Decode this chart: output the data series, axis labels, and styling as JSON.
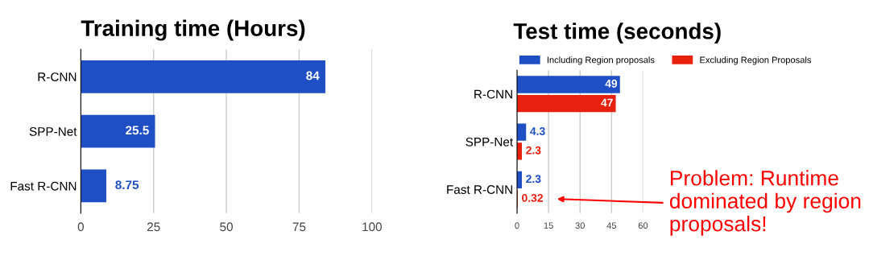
{
  "chart_data": [
    {
      "type": "bar",
      "orientation": "horizontal",
      "title": "Training time (Hours)",
      "categories": [
        "R-CNN",
        "SPP-Net",
        "Fast R-CNN"
      ],
      "values": [
        84,
        25.5,
        8.75
      ],
      "color": "#1f4fc4",
      "xlim": [
        0,
        100
      ],
      "xticks": [
        0,
        25,
        50,
        75,
        100
      ],
      "grid": "x",
      "data_labels": true,
      "legend": false
    },
    {
      "type": "bar",
      "orientation": "horizontal",
      "title": "Test time (seconds)",
      "categories": [
        "R-CNN",
        "SPP-Net",
        "Fast R-CNN"
      ],
      "series": [
        {
          "name": "Including Region proposals",
          "color": "#1f4fc4",
          "values": [
            49,
            4.3,
            2.3
          ]
        },
        {
          "name": "Excluding Region Proposals",
          "color": "#e8200e",
          "values": [
            47,
            2.3,
            0.32
          ]
        }
      ],
      "xlim": [
        0,
        60
      ],
      "xticks": [
        0,
        15,
        30,
        45,
        60
      ],
      "grid": "x",
      "data_labels": true,
      "legend": "top",
      "annotations": [
        "Problem: Runtime dominated by region proposals!"
      ]
    }
  ]
}
